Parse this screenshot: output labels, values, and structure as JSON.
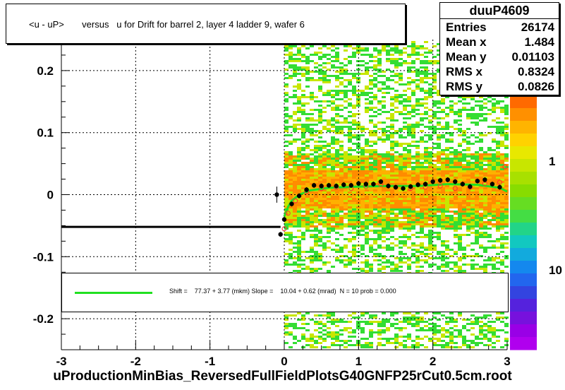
{
  "title": "<u - uP>       versus   u for Drift for barrel 2, layer 4 ladder 9, wafer 6",
  "footer": "uProductionMinBias_ReversedFullFieldPlotsG40GNFP25rCut0.5cm.root",
  "stats": {
    "name": "duuP4609",
    "rows": [
      {
        "label": "Entries",
        "value": "26174"
      },
      {
        "label": "Mean x",
        "value": "1.484"
      },
      {
        "label": "Mean y",
        "value": "0.01103"
      },
      {
        "label": "RMS x",
        "value": "0.8324"
      },
      {
        "label": "RMS y",
        "value": "0.0826"
      }
    ]
  },
  "legend": {
    "text": "Shift =    77.37 + 3.77 (mkm) Slope =    10.04 + 0.62 (mrad)  N = 10 prob = 0.000",
    "line_color": "#21e021"
  },
  "colors": {
    "fit": "#21e021",
    "points": "#000000",
    "open_points": "#ff3030",
    "dense": "#ff8c00",
    "medium": "#c8e600",
    "sparse": "#33dd33"
  },
  "chart_data": {
    "type": "heatmap",
    "xlim": [
      -3,
      3
    ],
    "ylim": [
      -0.25,
      0.25
    ],
    "x_ticks": [
      "-3",
      "-2",
      "-1",
      "0",
      "1",
      "2",
      "3"
    ],
    "y_ticks": [
      "-0.2",
      "-0.1",
      "0",
      "0.1",
      "0.2"
    ],
    "colorbar_labels": [
      "1",
      "10"
    ],
    "grid": true,
    "profile_points": [
      {
        "x": -0.1,
        "y": 0.0
      },
      {
        "x": -0.05,
        "y": -0.064
      },
      {
        "x": 0.0,
        "y": -0.04
      },
      {
        "x": 0.1,
        "y": -0.015
      },
      {
        "x": 0.2,
        "y": -0.002
      },
      {
        "x": 0.3,
        "y": 0.008
      },
      {
        "x": 0.4,
        "y": 0.015
      },
      {
        "x": 0.5,
        "y": 0.014
      },
      {
        "x": 0.6,
        "y": 0.015
      },
      {
        "x": 0.7,
        "y": 0.014
      },
      {
        "x": 0.8,
        "y": 0.016
      },
      {
        "x": 0.9,
        "y": 0.015
      },
      {
        "x": 1.0,
        "y": 0.018
      },
      {
        "x": 1.1,
        "y": 0.017
      },
      {
        "x": 1.2,
        "y": 0.017
      },
      {
        "x": 1.3,
        "y": 0.021
      },
      {
        "x": 1.4,
        "y": 0.014
      },
      {
        "x": 1.5,
        "y": 0.012
      },
      {
        "x": 1.6,
        "y": 0.01
      },
      {
        "x": 1.7,
        "y": 0.013
      },
      {
        "x": 1.8,
        "y": 0.016
      },
      {
        "x": 1.9,
        "y": 0.017
      },
      {
        "x": 2.0,
        "y": 0.021
      },
      {
        "x": 2.1,
        "y": 0.023
      },
      {
        "x": 2.2,
        "y": 0.024
      },
      {
        "x": 2.3,
        "y": 0.021
      },
      {
        "x": 2.4,
        "y": 0.017
      },
      {
        "x": 2.5,
        "y": 0.013
      },
      {
        "x": 2.6,
        "y": 0.022
      },
      {
        "x": 2.7,
        "y": 0.024
      },
      {
        "x": 2.8,
        "y": 0.017
      },
      {
        "x": 2.9,
        "y": 0.012
      }
    ],
    "open_points": [
      {
        "x": 0.0,
        "y": -0.055
      },
      {
        "x": 0.05,
        "y": -0.03
      },
      {
        "x": 0.15,
        "y": -0.01
      },
      {
        "x": 0.3,
        "y": 0.005
      },
      {
        "x": 0.5,
        "y": 0.01
      },
      {
        "x": 0.7,
        "y": 0.012
      },
      {
        "x": 0.9,
        "y": 0.01
      },
      {
        "x": 1.1,
        "y": 0.013
      },
      {
        "x": 1.3,
        "y": 0.016
      },
      {
        "x": 1.5,
        "y": 0.012
      },
      {
        "x": 1.7,
        "y": 0.01
      },
      {
        "x": 1.9,
        "y": 0.012
      },
      {
        "x": 2.1,
        "y": 0.014
      },
      {
        "x": 2.3,
        "y": 0.01
      },
      {
        "x": 2.5,
        "y": 0.012
      },
      {
        "x": 2.7,
        "y": 0.018
      },
      {
        "x": 2.9,
        "y": 0.02
      },
      {
        "x": 2.97,
        "y": 0.045
      }
    ],
    "fit_curve": [
      {
        "x": 0.0,
        "y": -0.035
      },
      {
        "x": 0.05,
        "y": -0.02
      },
      {
        "x": 0.1,
        "y": -0.01
      },
      {
        "x": 0.2,
        "y": 0.0
      },
      {
        "x": 0.35,
        "y": 0.007
      },
      {
        "x": 0.6,
        "y": 0.011
      },
      {
        "x": 1.0,
        "y": 0.013
      },
      {
        "x": 1.4,
        "y": 0.014
      },
      {
        "x": 1.8,
        "y": 0.014
      },
      {
        "x": 2.2,
        "y": 0.017
      },
      {
        "x": 2.6,
        "y": 0.016
      },
      {
        "x": 2.9,
        "y": 0.011
      },
      {
        "x": 3.0,
        "y": 0.005
      }
    ],
    "flat_line": {
      "x_from": -3,
      "x_to": -0.05,
      "y": -0.052
    }
  }
}
